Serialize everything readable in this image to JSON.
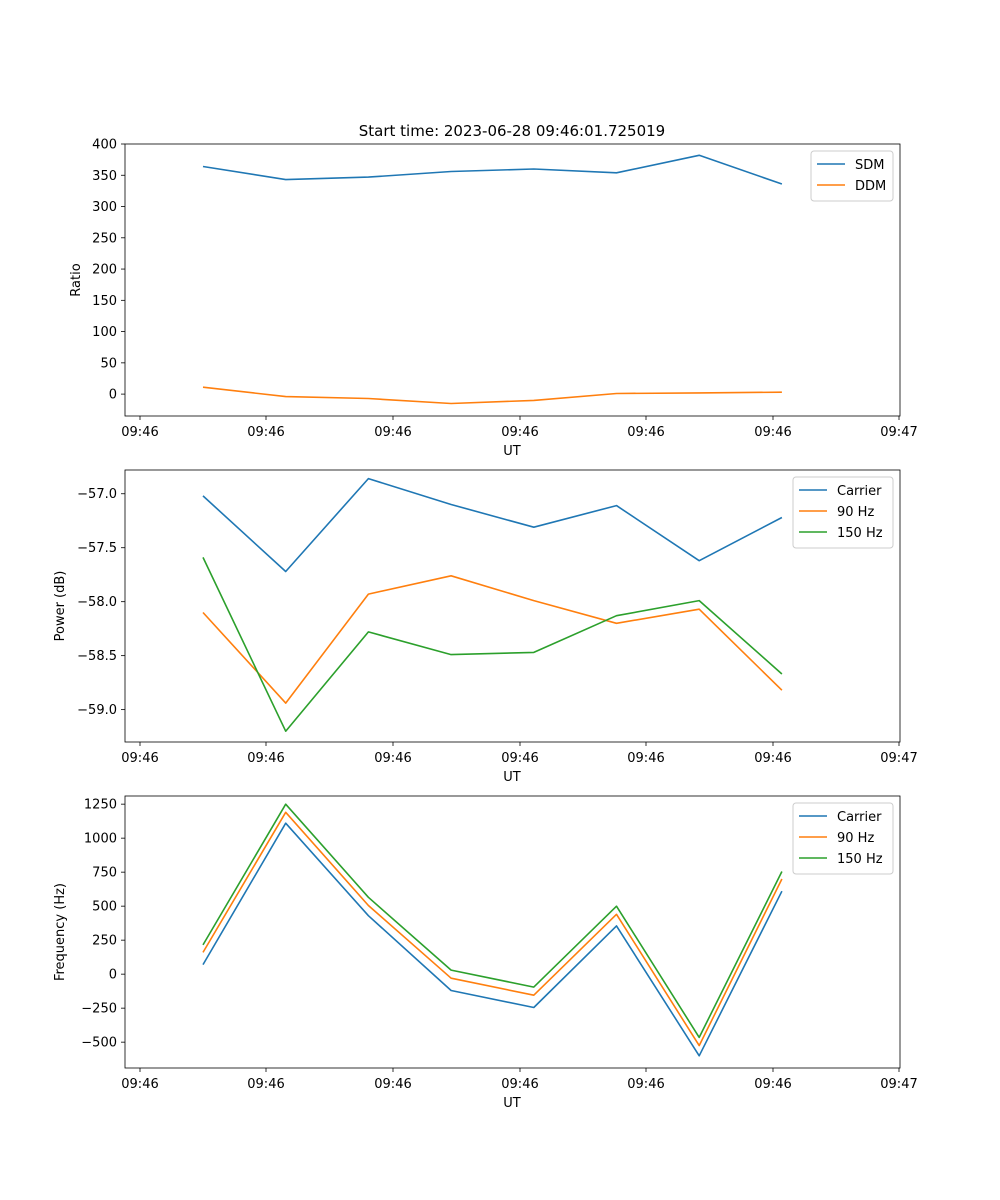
{
  "figure_title": "Start time: 2023-06-28 09:46:01.725019",
  "colors": {
    "blue": "#1f77b4",
    "orange": "#ff7f0e",
    "green": "#2ca02c"
  },
  "chart_data": [
    {
      "type": "line",
      "xlabel": "UT",
      "ylabel": "Ratio",
      "x_tick_labels": [
        "09:46",
        "09:46",
        "09:46",
        "09:46",
        "09:46",
        "09:46",
        "09:47"
      ],
      "y_ticks": [
        0,
        50,
        100,
        150,
        200,
        250,
        300,
        350,
        400
      ],
      "ylim": [
        -35,
        400
      ],
      "legend_position": "upper right",
      "series": [
        {
          "name": "SDM",
          "color": "#1f77b4",
          "values": [
            364,
            343,
            347,
            356,
            360,
            354,
            382,
            336
          ]
        },
        {
          "name": "DDM",
          "color": "#ff7f0e",
          "values": [
            11,
            -4,
            -7,
            -15,
            -10,
            1,
            2,
            3
          ]
        }
      ]
    },
    {
      "type": "line",
      "xlabel": "UT",
      "ylabel": "Power (dB)",
      "x_tick_labels": [
        "09:46",
        "09:46",
        "09:46",
        "09:46",
        "09:46",
        "09:46",
        "09:47"
      ],
      "y_ticks": [
        -59.0,
        -58.5,
        -58.0,
        -57.5,
        -57.0
      ],
      "y_tick_labels": [
        "−59.0",
        "−58.5",
        "−58.0",
        "−57.5",
        "−57.0"
      ],
      "ylim": [
        -59.3,
        -56.78
      ],
      "legend_position": "upper right",
      "series": [
        {
          "name": "Carrier",
          "color": "#1f77b4",
          "values": [
            -57.02,
            -57.72,
            -56.86,
            -57.1,
            -57.31,
            -57.11,
            -57.62,
            -57.22
          ]
        },
        {
          "name": "90 Hz",
          "color": "#ff7f0e",
          "values": [
            -58.1,
            -58.94,
            -57.93,
            -57.76,
            -57.99,
            -58.2,
            -58.07,
            -58.82
          ]
        },
        {
          "name": "150 Hz",
          "color": "#2ca02c",
          "values": [
            -57.59,
            -59.2,
            -58.28,
            -58.49,
            -58.47,
            -58.13,
            -57.99,
            -58.67
          ]
        }
      ]
    },
    {
      "type": "line",
      "xlabel": "UT",
      "ylabel": "Frequency (Hz)",
      "x_tick_labels": [
        "09:46",
        "09:46",
        "09:46",
        "09:46",
        "09:46",
        "09:46",
        "09:47"
      ],
      "y_ticks": [
        -500,
        -250,
        0,
        250,
        500,
        750,
        1000,
        1250
      ],
      "y_tick_labels": [
        "−500",
        "−250",
        "0",
        "250",
        "500",
        "750",
        "1000",
        "1250"
      ],
      "ylim": [
        -690,
        1310
      ],
      "legend_position": "upper right",
      "series": [
        {
          "name": "Carrier",
          "color": "#1f77b4",
          "values": [
            70,
            1110,
            430,
            -120,
            -245,
            355,
            -600,
            610
          ]
        },
        {
          "name": "90 Hz",
          "color": "#ff7f0e",
          "values": [
            160,
            1190,
            505,
            -30,
            -155,
            440,
            -525,
            700
          ]
        },
        {
          "name": "150 Hz",
          "color": "#2ca02c",
          "values": [
            215,
            1250,
            565,
            30,
            -95,
            500,
            -465,
            755
          ]
        }
      ]
    }
  ]
}
